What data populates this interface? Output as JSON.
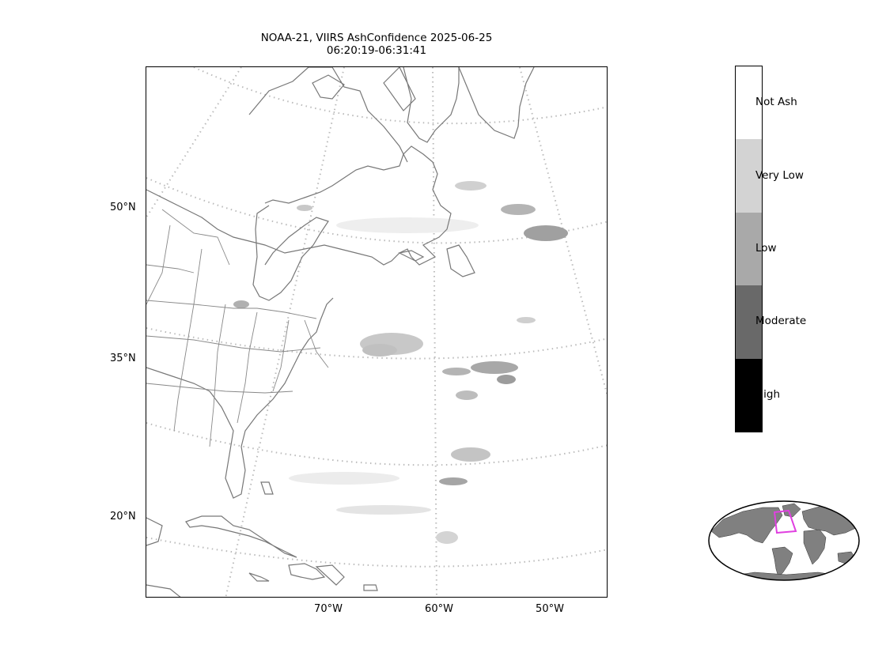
{
  "title": {
    "line1": "NOAA-21, VIIRS AshConfidence 2025-06-25",
    "line2": "06:20:19-06:31:41"
  },
  "map": {
    "lat_labels": [
      "50°N",
      "35°N",
      "20°N"
    ],
    "lon_labels": [
      "70°W",
      "60°W",
      "50°W"
    ],
    "coastline_color": "#777777",
    "graticule_color": "#bbbbbb"
  },
  "colorbar": {
    "categories": [
      {
        "label": "Not Ash",
        "color": "#ffffff"
      },
      {
        "label": "Very Low",
        "color": "#d3d3d3"
      },
      {
        "label": "Low",
        "color": "#a9a9a9"
      },
      {
        "label": "Moderate",
        "color": "#696969"
      },
      {
        "label": "High",
        "color": "#000000"
      }
    ]
  },
  "inset": {
    "land_color": "#808080",
    "ocean_color": "#ffffff",
    "highlight_color": "#e040e0"
  }
}
